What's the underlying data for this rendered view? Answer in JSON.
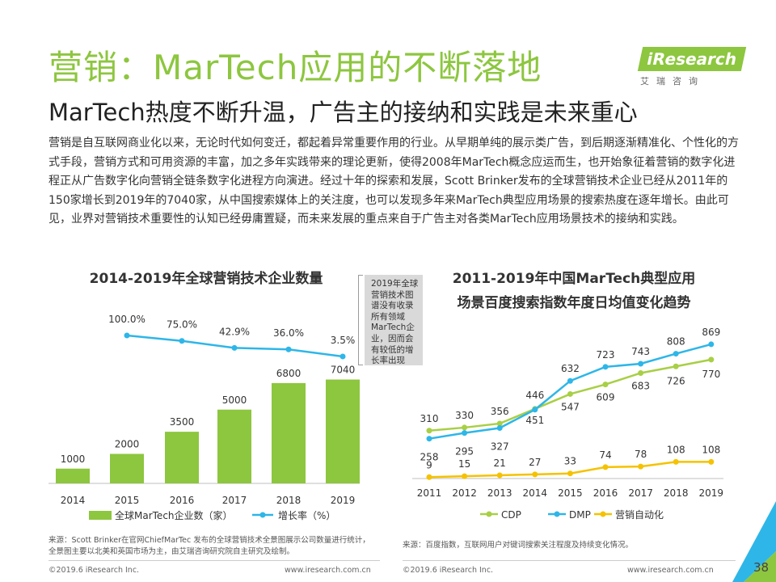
{
  "header": {
    "title": "营销：MarTech应用的不断落地",
    "subtitle": "MarTech热度不断升温，广告主的接纳和实践是未来重心"
  },
  "logo": {
    "word": "iResearch",
    "sub": "艾瑞咨询"
  },
  "intro": "营销是自互联网商业化以来，无论时代如何变迁，都起着异常重要作用的行业。从早期单纯的展示类广告，到后期逐渐精准化、个性化的方式手段，营销方式和可用资源的丰富，加之多年实践带来的理论更新，使得2008年MarTech概念应运而生，也开始象征着营销的数字化进程正从广告数字化向营销全链条数字化进程方向演进。经过十年的探索和发展，Scott Brinker发布的全球营销技术企业已经从2011年的150家增长到2019年的7040家，从中国搜索媒体上的关注度，也可以发现多年来MarTech典型应用场景的搜索热度在逐年增长。由此可见，业界对营销技术重要性的认知已经毋庸置疑，而未来发展的重点来自于广告主对各类MarTech应用场景技术的接纳和实践。",
  "note": "2019年全球营销技术图谱没有收录所有领域MarTech企业，因而会有较低的增长率出现",
  "chart_data": [
    {
      "type": "bar",
      "title": "2014-2019年全球营销技术企业数量",
      "categories": [
        "2014",
        "2015",
        "2016",
        "2017",
        "2018",
        "2019"
      ],
      "series": [
        {
          "name": "全球MarTech企业数（家）",
          "type": "bar",
          "values": [
            1000,
            2000,
            3500,
            5000,
            6800,
            7040
          ]
        },
        {
          "name": "增长率（%）",
          "type": "line",
          "values": [
            null,
            100.0,
            75.0,
            42.9,
            36.0,
            3.5
          ],
          "labels": [
            "",
            "100.0%",
            "75.0%",
            "42.9%",
            "36.0%",
            "3.5%"
          ]
        }
      ],
      "ylim": [
        0,
        8000
      ],
      "colors": {
        "bar": "#8dc63f",
        "line": "#2eb6e8"
      }
    },
    {
      "type": "line",
      "title_lines": [
        "2011-2019年中国MarTech典型应用",
        "场景百度搜索指数年度日均值变化趋势"
      ],
      "categories": [
        "2011",
        "2012",
        "2013",
        "2014",
        "2015",
        "2016",
        "2017",
        "2018",
        "2019"
      ],
      "series": [
        {
          "name": "CDP",
          "values": [
            310,
            330,
            356,
            451,
            547,
            609,
            683,
            726,
            770
          ],
          "color": "#a8cf45"
        },
        {
          "name": "DMP",
          "values": [
            258,
            295,
            327,
            446,
            632,
            723,
            743,
            808,
            869
          ],
          "color": "#2eb6e8"
        },
        {
          "name": "营销自动化",
          "values": [
            9,
            15,
            21,
            27,
            33,
            74,
            78,
            108,
            108
          ],
          "color": "#f5c200"
        }
      ],
      "ylim": [
        0,
        900
      ]
    }
  ],
  "sources": {
    "left": "来源：Scott Brinker在官网ChiefMarTec 发布的全球营销技术全景图展示公司数量进行统计，全景图主要以北美和英国市场为主，由艾瑞咨询研究院自主研究及绘制。",
    "right": "来源：百度指数，互联网用户对键词搜索关注程度及持续变化情况。"
  },
  "footer": {
    "copyright": "©2019.6 iResearch Inc.",
    "site": "www.iresearch.com.cn",
    "page": "38"
  }
}
